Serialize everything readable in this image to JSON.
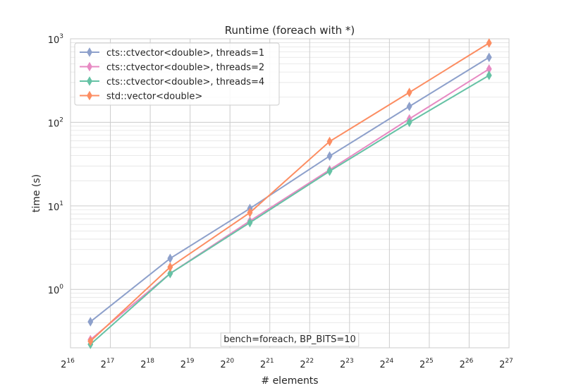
{
  "chart_data": {
    "type": "line",
    "title": "Runtime (foreach with *)",
    "xlabel": "# elements",
    "ylabel": "time (s)",
    "x_scale": "log2",
    "y_scale": "log10",
    "xlim": [
      65536,
      134217728
    ],
    "ylim": [
      0.2,
      1000
    ],
    "x_ticks": [
      {
        "value": 65536,
        "base": "2",
        "exp": "16"
      },
      {
        "value": 131072,
        "base": "2",
        "exp": "17"
      },
      {
        "value": 262144,
        "base": "2",
        "exp": "18"
      },
      {
        "value": 524288,
        "base": "2",
        "exp": "19"
      },
      {
        "value": 1048576,
        "base": "2",
        "exp": "20"
      },
      {
        "value": 2097152,
        "base": "2",
        "exp": "21"
      },
      {
        "value": 4194304,
        "base": "2",
        "exp": "22"
      },
      {
        "value": 8388608,
        "base": "2",
        "exp": "23"
      },
      {
        "value": 16777216,
        "base": "2",
        "exp": "24"
      },
      {
        "value": 33554432,
        "base": "2",
        "exp": "25"
      },
      {
        "value": 67108864,
        "base": "2",
        "exp": "26"
      },
      {
        "value": 134217728,
        "base": "2",
        "exp": "27"
      }
    ],
    "y_ticks": [
      {
        "value": 1,
        "base": "10",
        "exp": "0"
      },
      {
        "value": 10,
        "base": "10",
        "exp": "1"
      },
      {
        "value": 100,
        "base": "10",
        "exp": "2"
      },
      {
        "value": 1000,
        "base": "10",
        "exp": "3"
      }
    ],
    "x": [
      92682,
      370728,
      1482910,
      5931642,
      23726566,
      94906266
    ],
    "series": [
      {
        "name": "cts::ctvector<double>, threads=1",
        "color": "#8da0cb",
        "values": [
          0.41,
          2.35,
          9.3,
          39.5,
          155,
          600
        ]
      },
      {
        "name": "cts::ctvector<double>, threads=2",
        "color": "#e78ac3",
        "values": [
          0.25,
          1.55,
          6.6,
          27,
          110,
          435
        ]
      },
      {
        "name": "cts::ctvector<double>, threads=4",
        "color": "#66c2a5",
        "values": [
          0.22,
          1.55,
          6.3,
          26,
          100,
          365
        ]
      },
      {
        "name": "std::vector<double>",
        "color": "#fc8d62",
        "values": [
          0.24,
          1.85,
          8.3,
          59,
          228,
          890
        ]
      }
    ],
    "annotation": "bench=foreach, BP_BITS=10",
    "legend_position": "upper-left",
    "grid": true,
    "marker": "thin-diamond"
  }
}
